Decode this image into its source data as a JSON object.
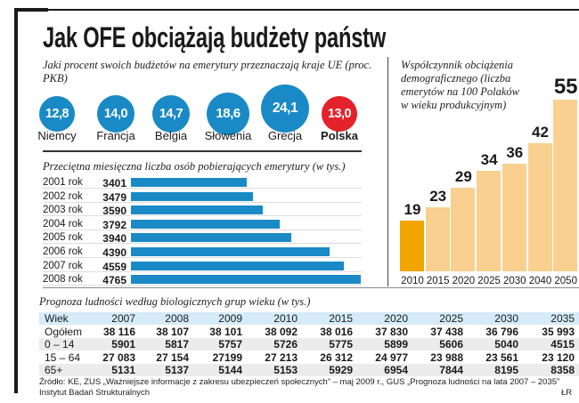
{
  "title": "Jak OFE obciążają budżety państw",
  "colors": {
    "blue": "#1a8ac6",
    "red": "#e3222b",
    "orange_highlight": "#f2a500",
    "orange_light": "#f9d08f",
    "table_header": "#d5ebf8"
  },
  "chart_data": [
    {
      "type": "bubble",
      "title": "Jaki procent swoich budżetów na emerytury przeznaczają kraje UE (proc. PKB)",
      "categories": [
        "Niemcy",
        "Francja",
        "Belgia",
        "Słowenia",
        "Grecja",
        "Polska"
      ],
      "values": [
        "12,8",
        "14,0",
        "14,7",
        "18,6",
        "24,1",
        "13,0"
      ],
      "highlight": "Polska"
    },
    {
      "type": "bar",
      "orientation": "horizontal",
      "title": "Przeciętna miesięczna liczba osób pobierających emerytury (w tys.)",
      "categories": [
        "2001 rok",
        "2002 rok",
        "2003 rok",
        "2004 rok",
        "2005 rok",
        "2006 rok",
        "2007 rok",
        "2008 rok"
      ],
      "values": [
        3401,
        3479,
        3590,
        3792,
        3940,
        4390,
        4559,
        4765
      ]
    },
    {
      "type": "bar",
      "title": "Współczynnik obciążenia demograficznego (liczba emerytów na 100 Polaków w wieku produkcyjnym)",
      "categories": [
        "2010",
        "2015",
        "2020",
        "2025",
        "2030",
        "2040",
        "2050"
      ],
      "values": [
        19,
        23,
        29,
        34,
        36,
        42,
        55
      ],
      "highlight": "2010"
    },
    {
      "type": "table",
      "title": "Prognoza ludności według biologicznych grup wieku (w tys.)",
      "header": [
        "Wiek",
        "2007",
        "2008",
        "2009",
        "2010",
        "2015",
        "2020",
        "2025",
        "2030",
        "2035"
      ],
      "rows": [
        [
          "Ogółem",
          "38 116",
          "38 107",
          "38 101",
          "38 092",
          "38 016",
          "37 830",
          "37 438",
          "36 796",
          "35 993"
        ],
        [
          "0 – 14",
          "5901",
          "5817",
          "5757",
          "5726",
          "5775",
          "5899",
          "5606",
          "5040",
          "4515"
        ],
        [
          "15 – 64",
          "27 083",
          "27 154",
          "27199",
          "27 213",
          "26 312",
          "24 977",
          "23 988",
          "23 561",
          "23 120"
        ],
        [
          "65+",
          "5131",
          "5137",
          "5144",
          "5153",
          "5929",
          "6954",
          "7844",
          "8195",
          "8358"
        ]
      ]
    }
  ],
  "source": {
    "line1": "Źródło: KE, ZUS „Ważniejsze informacje z zakresu ubezpieczeń społecznych” – maj 2009 r., GUS „Prognoza ludności na lata 2007 – 2035”",
    "line2": "Instytut Badań Strukturalnych",
    "author": "ŁR"
  }
}
